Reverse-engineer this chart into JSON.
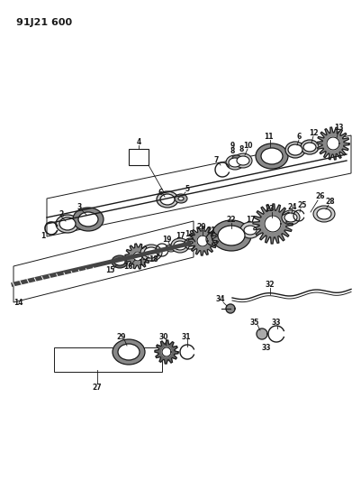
{
  "title": "91J21 600",
  "bg_color": "#ffffff",
  "lc": "#1a1a1a",
  "fig_w": 4.01,
  "fig_h": 5.33,
  "dpi": 100,
  "gray1": "#aaaaaa",
  "gray2": "#888888",
  "gray3": "#cccccc",
  "gray4": "#666666"
}
